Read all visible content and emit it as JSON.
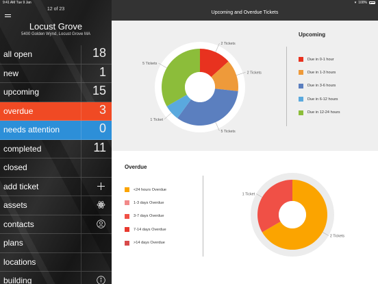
{
  "status_bar": {
    "time_date": "9:41 AM   Tue 9 Jan",
    "battery": "100%"
  },
  "sidebar": {
    "pager": "12 of 23",
    "site_name": "Locust Grove",
    "site_address": "5400 Golden Wynd, Locust Grove MA",
    "items": [
      {
        "label": "all open",
        "count": "18"
      },
      {
        "label": "new",
        "count": "1"
      },
      {
        "label": "upcoming",
        "count": "15"
      },
      {
        "label": "overdue",
        "count": "3"
      },
      {
        "label": "needs attention",
        "count": "0"
      },
      {
        "label": "completed",
        "count": "11"
      },
      {
        "label": "closed"
      },
      {
        "label": "add ticket",
        "icon": "plus-icon"
      },
      {
        "label": "assets",
        "icon": "atom-icon"
      },
      {
        "label": "contacts",
        "icon": "contact-icon"
      },
      {
        "label": "plans"
      },
      {
        "label": "locations"
      },
      {
        "label": "building",
        "icon": "info-icon"
      }
    ]
  },
  "header": {
    "title": "Upcoming and Overdue Tickets"
  },
  "colors": {
    "red": "#e8321f",
    "orange": "#ee9a3a",
    "blue": "#5b7fbf",
    "lightblue": "#5aa9de",
    "green": "#8cbd3a",
    "overdue_orange": "#fba400",
    "overdue_salmon": "#f28a8a",
    "overdue_red": "#f05046",
    "overdue_darkred": "#e8392e",
    "overdue_crimson": "#d84a4a"
  },
  "chart_data": [
    {
      "type": "pie",
      "title": "Upcoming",
      "categories": [
        "Due in 0-1 hour",
        "Due in 1-3 hours",
        "Due in 3-6 hours",
        "Due in 6-12 hours",
        "Due in 12-24 hours"
      ],
      "values": [
        2,
        2,
        5,
        1,
        5
      ],
      "data_labels": [
        "2 Tickets",
        "2 Tickets",
        "5 Tickets",
        "1 Ticket",
        "5 Tickets"
      ],
      "legend": "right"
    },
    {
      "type": "pie",
      "title": "Overdue",
      "categories": [
        "<24 hours Overdue",
        "1-3 days Overdue",
        "3-7 days Overdue",
        "7-14 days Overdue",
        ">14 days Overdue"
      ],
      "values": [
        2,
        0,
        1,
        0,
        0
      ],
      "data_labels": [
        "2 Tickets",
        "",
        "1 Ticket",
        "",
        ""
      ],
      "legend": "left"
    }
  ]
}
